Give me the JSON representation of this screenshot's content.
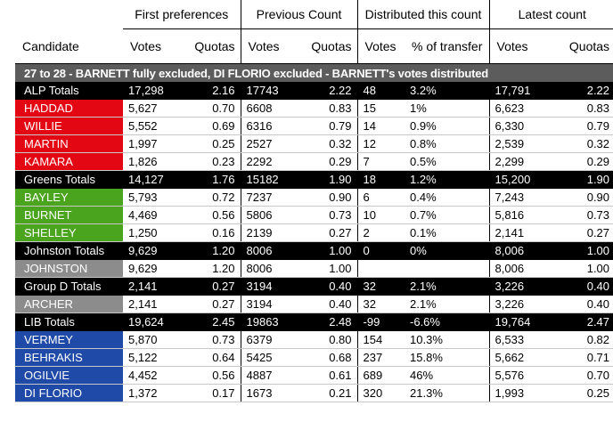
{
  "header": {
    "groups": [
      "First preferences",
      "Previous Count",
      "Distributed this count",
      "Latest count"
    ],
    "candidate": "Candidate",
    "subheaders": [
      "Votes",
      "Quotas",
      "Votes",
      "Quotas",
      "Votes",
      "% of transfer",
      "Votes",
      "Quotas"
    ]
  },
  "banner": "27 to 28 - BARNETT fully excluded, DI FLORIO excluded - BARNETT's votes distributed",
  "colors": {
    "red": "#e30613",
    "green": "#4aa41d",
    "grey": "#8c8c8c",
    "blue": "#1f4aa8",
    "banner": "#5c5c5c"
  },
  "rows": [
    {
      "name": "ALP Totals",
      "total": true,
      "cells": [
        "17,298",
        "2.16",
        "17743",
        "2.22",
        "48",
        "3.2%",
        "17,791",
        "2.22"
      ]
    },
    {
      "name": "HADDAD",
      "color": "red",
      "cells": [
        "5,627",
        "0.70",
        "6608",
        "0.83",
        "15",
        "1%",
        "6,623",
        "0.83"
      ]
    },
    {
      "name": "WILLIE",
      "color": "red",
      "cells": [
        "5,552",
        "0.69",
        "6316",
        "0.79",
        "14",
        "0.9%",
        "6,330",
        "0.79"
      ]
    },
    {
      "name": "MARTIN",
      "color": "red",
      "cells": [
        "1,997",
        "0.25",
        "2527",
        "0.32",
        "12",
        "0.8%",
        "2,539",
        "0.32"
      ]
    },
    {
      "name": "KAMARA",
      "color": "red",
      "cells": [
        "1,826",
        "0.23",
        "2292",
        "0.29",
        "7",
        "0.5%",
        "2,299",
        "0.29"
      ]
    },
    {
      "name": "Greens Totals",
      "total": true,
      "cells": [
        "14,127",
        "1.76",
        "15182",
        "1.90",
        "18",
        "1.2%",
        "15,200",
        "1.90"
      ]
    },
    {
      "name": "BAYLEY",
      "color": "green",
      "cells": [
        "5,793",
        "0.72",
        "7237",
        "0.90",
        "6",
        "0.4%",
        "7,243",
        "0.90"
      ]
    },
    {
      "name": "BURNET",
      "color": "green",
      "cells": [
        "4,469",
        "0.56",
        "5806",
        "0.73",
        "10",
        "0.7%",
        "5,816",
        "0.73"
      ]
    },
    {
      "name": "SHELLEY",
      "color": "green",
      "cells": [
        "1,250",
        "0.16",
        "2139",
        "0.27",
        "2",
        "0.1%",
        "2,141",
        "0.27"
      ]
    },
    {
      "name": "Johnston Totals",
      "total": true,
      "cells": [
        "9,629",
        "1.20",
        "8006",
        "1.00",
        "0",
        "0%",
        "8,006",
        "1.00"
      ]
    },
    {
      "name": "JOHNSTON",
      "color": "grey",
      "cells": [
        "9,629",
        "1.20",
        "8006",
        "1.00",
        "",
        "",
        "8,006",
        "1.00"
      ]
    },
    {
      "name": "Group D Totals",
      "total": true,
      "cells": [
        "2,141",
        "0.27",
        "3194",
        "0.40",
        "32",
        "2.1%",
        "3,226",
        "0.40"
      ]
    },
    {
      "name": "ARCHER",
      "color": "grey",
      "cells": [
        "2,141",
        "0.27",
        "3194",
        "0.40",
        "32",
        "2.1%",
        "3,226",
        "0.40"
      ]
    },
    {
      "name": "LIB Totals",
      "total": true,
      "cells": [
        "19,624",
        "2.45",
        "19863",
        "2.48",
        "-99",
        "-6.6%",
        "19,764",
        "2.47"
      ]
    },
    {
      "name": "VERMEY",
      "color": "blue",
      "cells": [
        "5,870",
        "0.73",
        "6379",
        "0.80",
        "154",
        "10.3%",
        "6,533",
        "0.82"
      ]
    },
    {
      "name": "BEHRAKIS",
      "color": "blue",
      "cells": [
        "5,122",
        "0.64",
        "5425",
        "0.68",
        "237",
        "15.8%",
        "5,662",
        "0.71"
      ]
    },
    {
      "name": "OGILVIE",
      "color": "blue",
      "cells": [
        "4,452",
        "0.56",
        "4887",
        "0.61",
        "689",
        "46%",
        "5,576",
        "0.70"
      ]
    },
    {
      "name": "DI FLORIO",
      "color": "blue",
      "cells": [
        "1,372",
        "0.17",
        "1673",
        "0.21",
        "320",
        "21.3%",
        "1,993",
        "0.25"
      ]
    }
  ]
}
